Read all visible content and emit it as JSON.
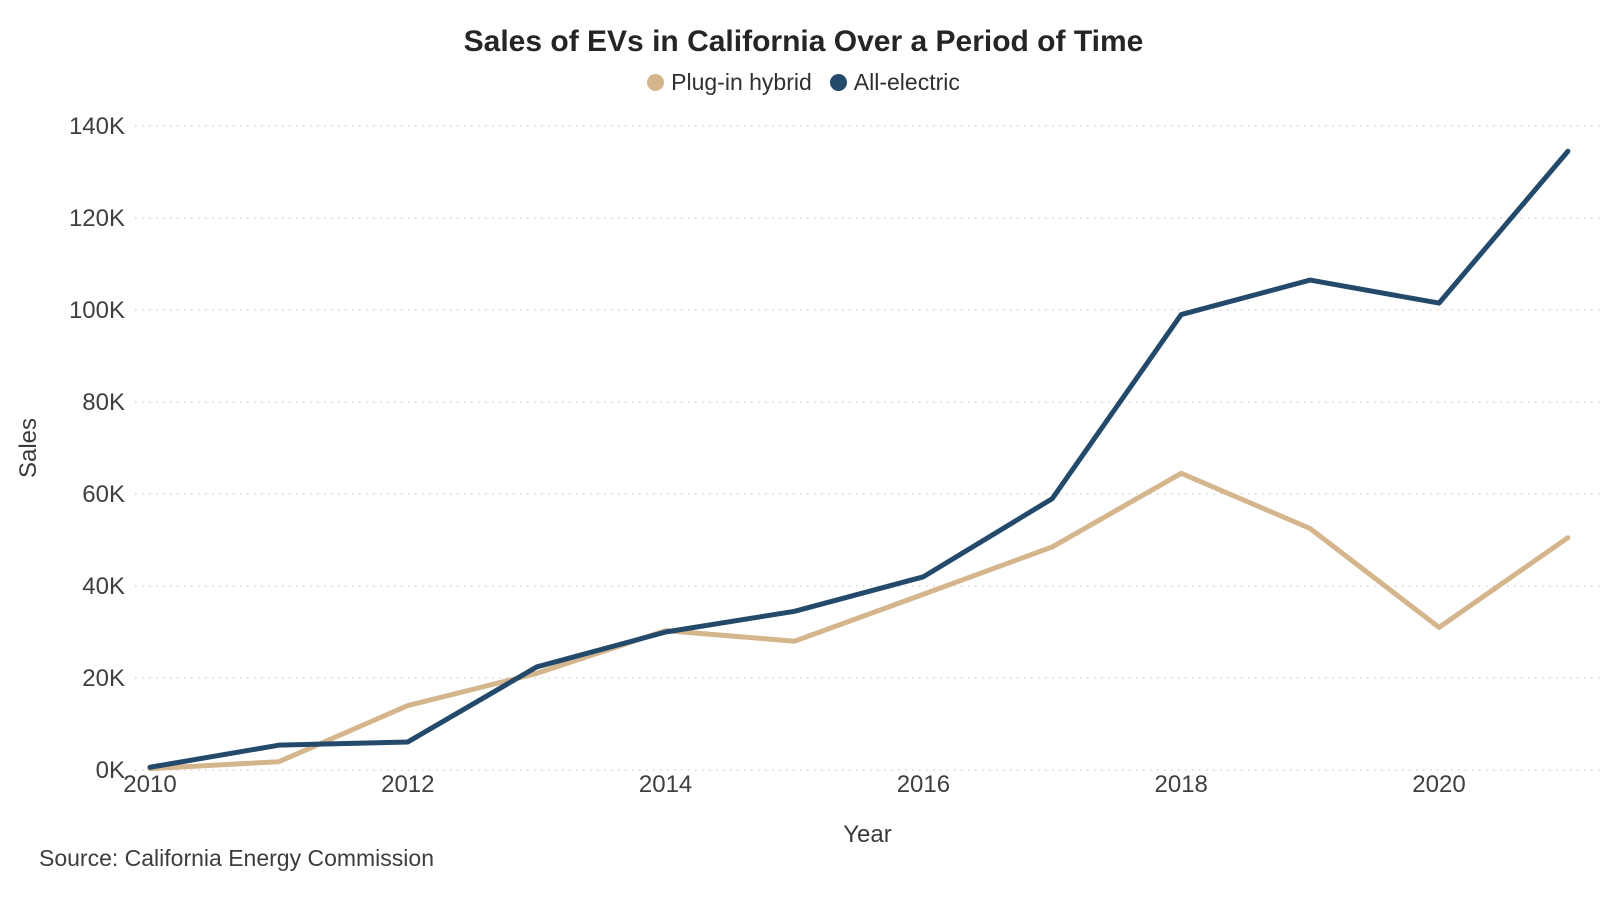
{
  "title": "Sales of EVs in California Over a Period of Time",
  "legend": {
    "position": "top-center",
    "items": [
      {
        "label": "Plug-in hybrid",
        "color": "#D4B58C"
      },
      {
        "label": "All-electric",
        "color": "#23496B"
      }
    ]
  },
  "source_note": "Source: California Energy Commission",
  "chart_data": {
    "type": "line",
    "title": "Sales of EVs in California Over a Period of Time",
    "xlabel": "Year",
    "ylabel": "Sales",
    "x": [
      2010,
      2011,
      2012,
      2013,
      2014,
      2015,
      2016,
      2017,
      2018,
      2019,
      2020,
      2021
    ],
    "x_tick_labels": [
      "2010",
      "2012",
      "2014",
      "2016",
      "2018",
      "2020"
    ],
    "y_ticks": [
      0,
      20000,
      40000,
      60000,
      80000,
      100000,
      120000,
      140000
    ],
    "y_tick_labels": [
      "0K",
      "20K",
      "40K",
      "60K",
      "80K",
      "100K",
      "120K",
      "140K"
    ],
    "ylim": [
      0,
      140000
    ],
    "xlim": [
      2010,
      2021
    ],
    "grid": "horizontal-dotted",
    "gridline_color": "#D8D3CE",
    "legend_position": "top-center",
    "series": [
      {
        "name": "Plug-in hybrid",
        "color": "#D4B58C",
        "values": [
          300,
          1800,
          14000,
          21000,
          30300,
          28000,
          38200,
          48500,
          64500,
          52500,
          31000,
          50500
        ]
      },
      {
        "name": "All-electric",
        "color": "#23496B",
        "values": [
          600,
          5400,
          6100,
          22400,
          30000,
          34500,
          42000,
          59000,
          99000,
          106500,
          101500,
          134500
        ]
      }
    ]
  }
}
